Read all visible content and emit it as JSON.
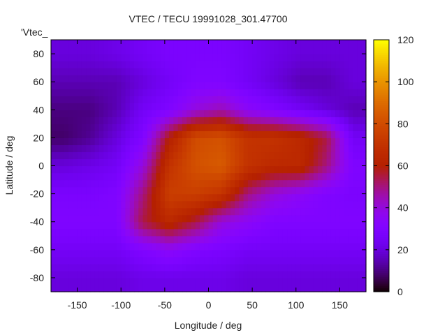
{
  "chart_data": {
    "type": "heatmap",
    "title": "VTEC / TECU 19991028_301.47700",
    "xlabel": "Longitude / deg",
    "ylabel": "Latitude / deg",
    "series_label": "'Vtec_",
    "xlim": [
      -180,
      180
    ],
    "ylim": [
      -90,
      90
    ],
    "xticks": [
      -150,
      -100,
      -50,
      0,
      50,
      100,
      150
    ],
    "yticks": [
      -80,
      -60,
      -40,
      -20,
      0,
      20,
      40,
      60,
      80
    ],
    "colorbar": {
      "range": [
        0,
        120
      ],
      "ticks": [
        0,
        20,
        40,
        60,
        80,
        100,
        120
      ]
    },
    "grid_lon": [
      -165,
      -135,
      -105,
      -75,
      -45,
      -15,
      15,
      45,
      75,
      105,
      135,
      165
    ],
    "grid_lat": [
      80,
      60,
      40,
      20,
      0,
      -20,
      -40,
      -60,
      -80
    ],
    "values": [
      [
        20,
        20,
        22,
        25,
        28,
        28,
        28,
        25,
        22,
        20,
        20,
        20
      ],
      [
        15,
        15,
        15,
        20,
        25,
        30,
        30,
        25,
        20,
        15,
        15,
        20
      ],
      [
        10,
        10,
        15,
        25,
        30,
        40,
        45,
        35,
        30,
        25,
        20,
        15
      ],
      [
        8,
        12,
        20,
        30,
        60,
        80,
        82,
        70,
        70,
        65,
        55,
        25
      ],
      [
        20,
        22,
        25,
        40,
        70,
        82,
        85,
        70,
        65,
        65,
        50,
        30
      ],
      [
        28,
        28,
        30,
        50,
        75,
        75,
        70,
        50,
        40,
        35,
        30,
        28
      ],
      [
        30,
        30,
        30,
        55,
        65,
        55,
        40,
        35,
        30,
        30,
        30,
        30
      ],
      [
        25,
        25,
        25,
        30,
        35,
        30,
        28,
        25,
        25,
        25,
        25,
        25
      ],
      [
        20,
        20,
        20,
        22,
        22,
        22,
        22,
        20,
        20,
        20,
        20,
        20
      ]
    ],
    "coastline_color": "#00a0ff"
  }
}
